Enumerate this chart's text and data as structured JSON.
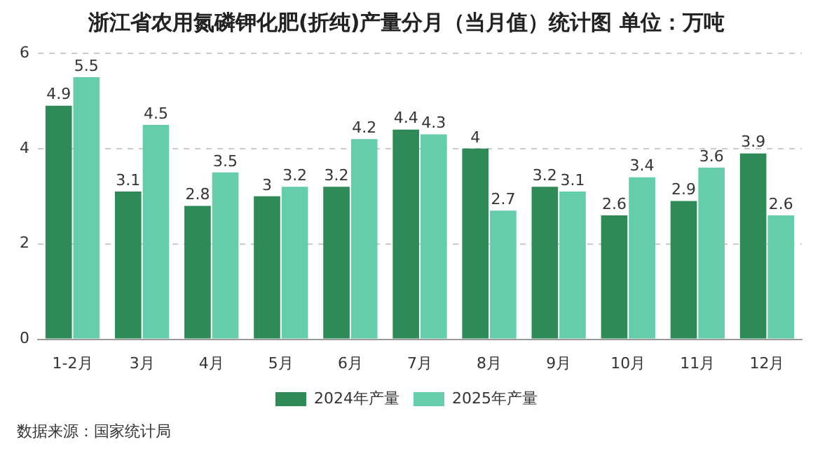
{
  "chart_data": {
    "type": "bar",
    "title": "浙江省农用氮磷钾化肥(折纯)产量分月（当月值）统计图 单位：万吨",
    "categories": [
      "1-2月",
      "3月",
      "4月",
      "5月",
      "6月",
      "7月",
      "8月",
      "9月",
      "10月",
      "11月",
      "12月"
    ],
    "series": [
      {
        "name": "2024年产量",
        "color": "#2e8b57",
        "values": [
          4.9,
          3.1,
          2.8,
          3,
          3.2,
          4.4,
          4,
          3.2,
          2.6,
          2.9,
          3.9
        ]
      },
      {
        "name": "2025年产量",
        "color": "#66cdaa",
        "values": [
          5.5,
          4.5,
          3.5,
          3.2,
          4.2,
          4.3,
          2.7,
          3.1,
          3.4,
          3.6,
          2.6
        ]
      }
    ],
    "ylim": [
      0,
      6
    ],
    "yticks": [
      0,
      2,
      4,
      6
    ],
    "grid": "y",
    "legend": "bottom",
    "data_labels": true,
    "annotations": [
      "数据来源：国家统计局"
    ]
  }
}
